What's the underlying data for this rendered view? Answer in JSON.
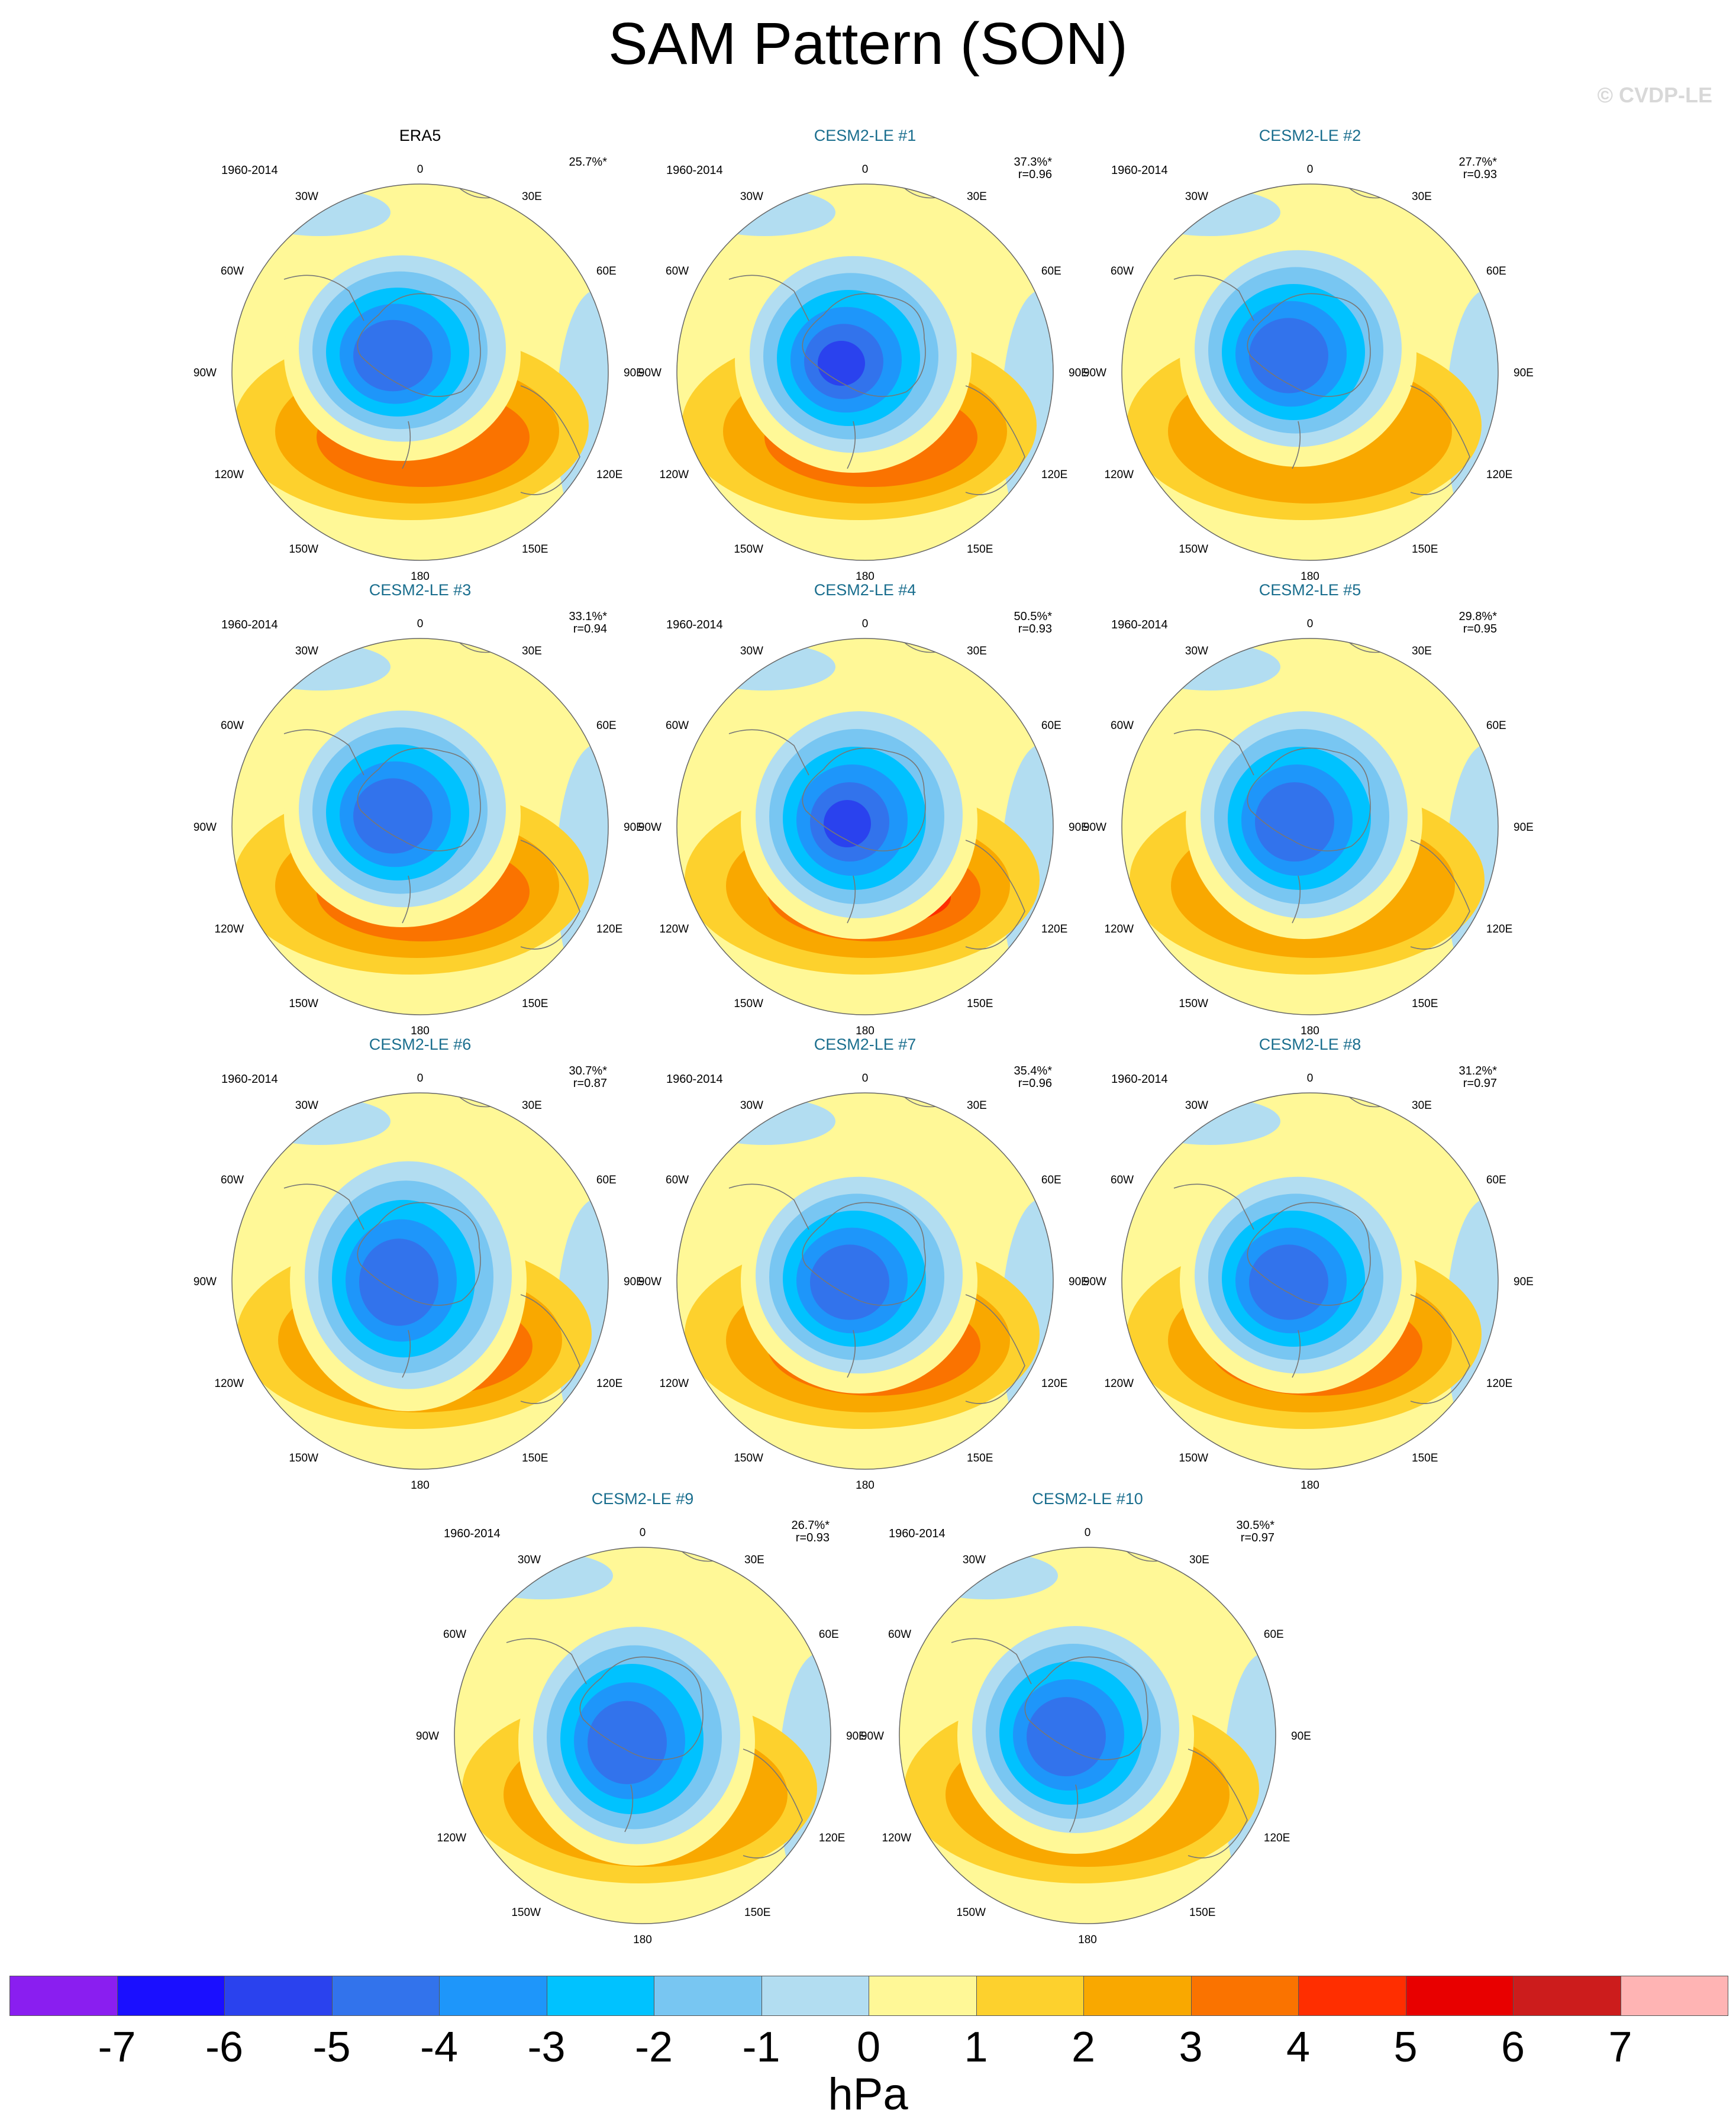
{
  "title": "SAM Pattern (SON)",
  "copyright": "© CVDP-LE",
  "longitude_labels": [
    "0",
    "30E",
    "60E",
    "90E",
    "120E",
    "150E",
    "180",
    "150W",
    "120W",
    "90W",
    "60W",
    "30W"
  ],
  "panels": [
    {
      "title": "ERA5",
      "kind": "obs",
      "period": "1960-2014",
      "variance": "25.7%*",
      "r": ""
    },
    {
      "title": "CESM2-LE #1",
      "kind": "model",
      "period": "1960-2014",
      "variance": "37.3%*",
      "r": "r=0.96"
    },
    {
      "title": "CESM2-LE #2",
      "kind": "model",
      "period": "1960-2014",
      "variance": "27.7%*",
      "r": "r=0.93"
    },
    {
      "title": "CESM2-LE #3",
      "kind": "model",
      "period": "1960-2014",
      "variance": "33.1%*",
      "r": "r=0.94"
    },
    {
      "title": "CESM2-LE #4",
      "kind": "model",
      "period": "1960-2014",
      "variance": "50.5%*",
      "r": "r=0.93"
    },
    {
      "title": "CESM2-LE #5",
      "kind": "model",
      "period": "1960-2014",
      "variance": "29.8%*",
      "r": "r=0.95"
    },
    {
      "title": "CESM2-LE #6",
      "kind": "model",
      "period": "1960-2014",
      "variance": "30.7%*",
      "r": "r=0.87"
    },
    {
      "title": "CESM2-LE #7",
      "kind": "model",
      "period": "1960-2014",
      "variance": "35.4%*",
      "r": "r=0.96"
    },
    {
      "title": "CESM2-LE #8",
      "kind": "model",
      "period": "1960-2014",
      "variance": "31.2%*",
      "r": "r=0.97"
    },
    {
      "title": "CESM2-LE #9",
      "kind": "model",
      "period": "1960-2014",
      "variance": "26.7%*",
      "r": "r=0.93"
    },
    {
      "title": "CESM2-LE #10",
      "kind": "model",
      "period": "1960-2014",
      "variance": "30.5%*",
      "r": "r=0.97"
    }
  ],
  "colorbar": {
    "units": "hPa",
    "labels": [
      "-7",
      "-6",
      "-5",
      "-4",
      "-3",
      "-2",
      "-1",
      "0",
      "1",
      "2",
      "3",
      "4",
      "5",
      "6",
      "7"
    ],
    "colors": [
      "#8a1ef0",
      "#1a0fff",
      "#2a42ee",
      "#3273ec",
      "#1e96fa",
      "#00c2ff",
      "#78c6f2",
      "#b2ddf1",
      "#fff897",
      "#fdd12d",
      "#f9a800",
      "#fa7300",
      "#ff2e00",
      "#e80000",
      "#cc1c1c",
      "#ffb4b4"
    ]
  },
  "palette": {
    "land_outline": "#777777",
    "map_border": "#666666"
  }
}
